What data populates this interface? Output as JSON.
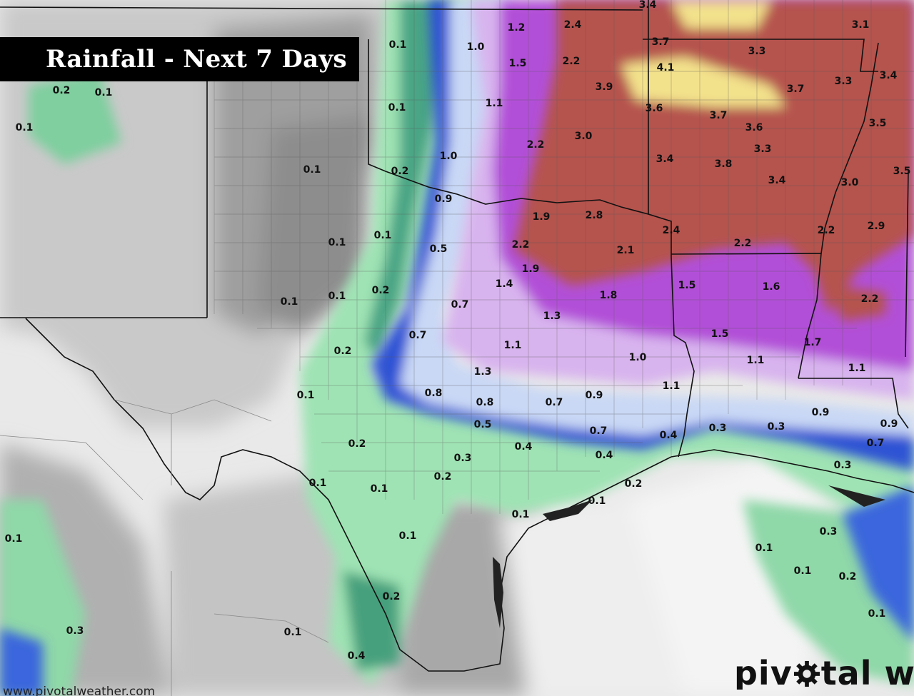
{
  "title": "Rainfall - Next 7 Days",
  "watermark": "www.pivotalweather.com",
  "brand": {
    "prefix": "piv",
    "suffix": "tal w",
    "icon": "gear-icon"
  },
  "colors": {
    "background": "#e9e9e9",
    "trace": "#cfcfcf",
    "light_gray": "#b5b5b5",
    "dark_gray": "#8a8a8a",
    "green": "#9fe3b4",
    "teal": "#3f9e7c",
    "blue": "#2d52d4",
    "light_blue": "#c9d8f5",
    "lavender": "#d8b4ee",
    "purple": "#b24fd8",
    "red": "#b5524d",
    "yellow": "#f3e28c",
    "border": "#111111",
    "county_line": "#5a5a5a"
  },
  "labels": [
    "3.4",
    "3.1",
    "1.2",
    "2.4",
    "0.1",
    "1.0",
    "1.5",
    "2.2",
    "3.7",
    "3.3",
    "4.1",
    "3.4",
    "3.3",
    "3.9",
    "3.7",
    "0.2",
    "0.1",
    "0.1",
    "1.1",
    "3.6",
    "3.7",
    "3.6",
    "3.5",
    "0.1",
    "3.0",
    "2.2",
    "1.0",
    "3.3",
    "0.1",
    "0.2",
    "3.4",
    "3.8",
    "3.5",
    "3.4",
    "3.0",
    "0.9",
    "1.9",
    "2.8",
    "2.4",
    "2.2",
    "2.9",
    "0.1",
    "0.1",
    "0.5",
    "2.2",
    "2.1",
    "2.2",
    "1.9",
    "1.4",
    "1.5",
    "1.6",
    "0.1",
    "0.1",
    "0.2",
    "1.8",
    "0.7",
    "1.3",
    "2.2",
    "0.7",
    "1.5",
    "1.7",
    "1.1",
    "0.2",
    "1.0",
    "1.1",
    "1.3",
    "1.1",
    "0.8",
    "0.1",
    "0.8",
    "0.7",
    "0.9",
    "1.1",
    "0.9",
    "0.5",
    "0.7",
    "0.4",
    "0.3",
    "0.3",
    "0.9",
    "0.7",
    "0.2",
    "0.4",
    "0.3",
    "0.4",
    "0.2",
    "0.3",
    "0.1",
    "0.1",
    "0.2",
    "0.1",
    "0.1",
    "0.1",
    "0.1",
    "0.3",
    "0.1",
    "0.1",
    "0.2",
    "0.2",
    "0.3",
    "0.1",
    "0.1",
    "0.4",
    "0.1"
  ]
}
